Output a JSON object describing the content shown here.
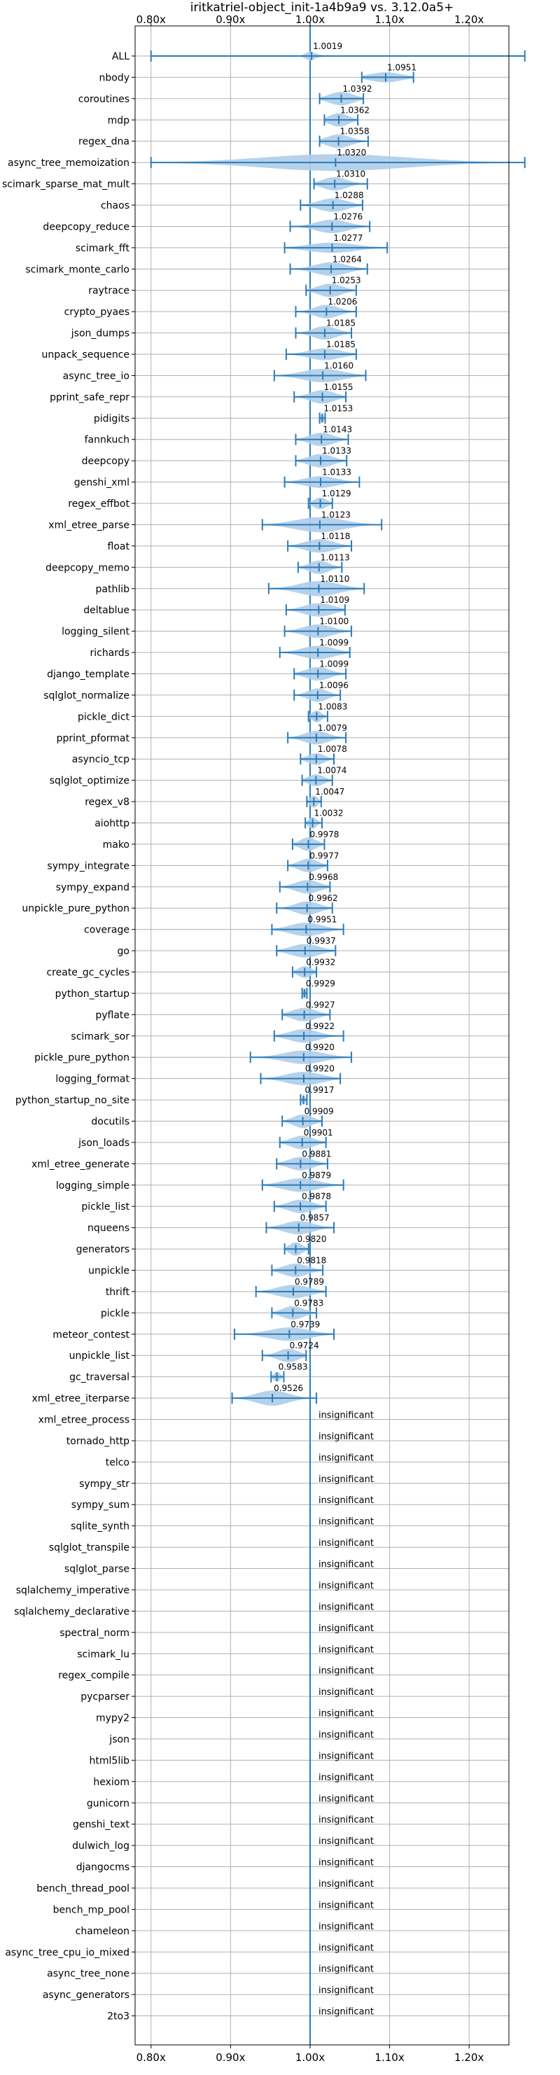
{
  "chart_data": {
    "type": "violin",
    "title": "iritkatriel-object_init-1a4b9a9 vs. 3.12.0a5+",
    "xlim": [
      0.78,
      1.25
    ],
    "xticks": [
      {
        "value": 0.8,
        "label": "0.80x"
      },
      {
        "value": 0.9,
        "label": "0.90x"
      },
      {
        "value": 1.0,
        "label": "1.00x"
      },
      {
        "value": 1.1,
        "label": "1.10x"
      },
      {
        "value": 1.2,
        "label": "1.20x"
      }
    ],
    "reference_value": 1.0,
    "grid": true,
    "insignificant_label": "insignificant",
    "benchmarks": [
      {
        "name": "ALL",
        "value": 1.0019,
        "label": "1.0019",
        "min": 0.8,
        "max": 1.27,
        "width": 0.6,
        "spread": 0.006
      },
      {
        "name": "nbody",
        "value": 1.0951,
        "label": "1.0951",
        "min": 1.065,
        "max": 1.13,
        "width": 0.6,
        "spread": 0.02
      },
      {
        "name": "coroutines",
        "value": 1.0392,
        "label": "1.0392",
        "min": 1.012,
        "max": 1.067,
        "width": 0.8,
        "spread": 0.015
      },
      {
        "name": "mdp",
        "value": 1.0362,
        "label": "1.0362",
        "min": 1.018,
        "max": 1.06,
        "width": 0.8,
        "spread": 0.012
      },
      {
        "name": "regex_dna",
        "value": 1.0358,
        "label": "1.0358",
        "min": 1.012,
        "max": 1.073,
        "width": 0.8,
        "spread": 0.015
      },
      {
        "name": "async_tree_memoization",
        "value": 1.032,
        "label": "1.0320",
        "min": 0.8,
        "max": 1.27,
        "width": 1.0,
        "spread": 0.09
      },
      {
        "name": "scimark_sparse_mat_mult",
        "value": 1.031,
        "label": "1.0310",
        "min": 1.005,
        "max": 1.072,
        "width": 0.8,
        "spread": 0.015
      },
      {
        "name": "chaos",
        "value": 1.0288,
        "label": "1.0288",
        "min": 0.988,
        "max": 1.066,
        "width": 0.8,
        "spread": 0.018
      },
      {
        "name": "deepcopy_reduce",
        "value": 1.0276,
        "label": "1.0276",
        "min": 0.975,
        "max": 1.075,
        "width": 0.8,
        "spread": 0.02
      },
      {
        "name": "scimark_fft",
        "value": 1.0277,
        "label": "1.0277",
        "min": 0.968,
        "max": 1.097,
        "width": 0.6,
        "spread": 0.03
      },
      {
        "name": "scimark_monte_carlo",
        "value": 1.0264,
        "label": "1.0264",
        "min": 0.975,
        "max": 1.072,
        "width": 0.8,
        "spread": 0.02
      },
      {
        "name": "raytrace",
        "value": 1.0253,
        "label": "1.0253",
        "min": 0.995,
        "max": 1.058,
        "width": 0.8,
        "spread": 0.015
      },
      {
        "name": "crypto_pyaes",
        "value": 1.0206,
        "label": "1.0206",
        "min": 0.982,
        "max": 1.058,
        "width": 0.8,
        "spread": 0.015
      },
      {
        "name": "json_dumps",
        "value": 1.0185,
        "label": "1.0185",
        "min": 0.982,
        "max": 1.052,
        "width": 0.8,
        "spread": 0.015
      },
      {
        "name": "unpack_sequence",
        "value": 1.0185,
        "label": "1.0185",
        "min": 0.97,
        "max": 1.058,
        "width": 0.7,
        "spread": 0.02
      },
      {
        "name": "async_tree_io",
        "value": 1.016,
        "label": "1.0160",
        "min": 0.955,
        "max": 1.07,
        "width": 0.8,
        "spread": 0.025
      },
      {
        "name": "pprint_safe_repr",
        "value": 1.0155,
        "label": "1.0155",
        "min": 0.98,
        "max": 1.045,
        "width": 0.8,
        "spread": 0.015
      },
      {
        "name": "pidigits",
        "value": 1.0153,
        "label": "1.0153",
        "min": 1.012,
        "max": 1.019,
        "width": 0.6,
        "spread": 0.002
      },
      {
        "name": "fannkuch",
        "value": 1.0143,
        "label": "1.0143",
        "min": 0.982,
        "max": 1.048,
        "width": 0.8,
        "spread": 0.015
      },
      {
        "name": "deepcopy",
        "value": 1.0133,
        "label": "1.0133",
        "min": 0.982,
        "max": 1.046,
        "width": 0.8,
        "spread": 0.015
      },
      {
        "name": "genshi_xml",
        "value": 1.0133,
        "label": "1.0133",
        "min": 0.968,
        "max": 1.062,
        "width": 0.7,
        "spread": 0.02
      },
      {
        "name": "regex_effbot",
        "value": 1.0129,
        "label": "1.0129",
        "min": 0.998,
        "max": 1.028,
        "width": 0.7,
        "spread": 0.008
      },
      {
        "name": "xml_etree_parse",
        "value": 1.0123,
        "label": "1.0123",
        "min": 0.94,
        "max": 1.09,
        "width": 0.9,
        "spread": 0.03
      },
      {
        "name": "float",
        "value": 1.0118,
        "label": "1.0118",
        "min": 0.972,
        "max": 1.052,
        "width": 0.8,
        "spread": 0.018
      },
      {
        "name": "deepcopy_memo",
        "value": 1.0113,
        "label": "1.0113",
        "min": 0.985,
        "max": 1.04,
        "width": 0.8,
        "spread": 0.012
      },
      {
        "name": "pathlib",
        "value": 1.011,
        "label": "1.0110",
        "min": 0.948,
        "max": 1.068,
        "width": 0.9,
        "spread": 0.025
      },
      {
        "name": "deltablue",
        "value": 1.0109,
        "label": "1.0109",
        "min": 0.97,
        "max": 1.044,
        "width": 0.8,
        "spread": 0.018
      },
      {
        "name": "logging_silent",
        "value": 1.01,
        "label": "1.0100",
        "min": 0.968,
        "max": 1.052,
        "width": 0.8,
        "spread": 0.018
      },
      {
        "name": "richards",
        "value": 1.0099,
        "label": "1.0099",
        "min": 0.962,
        "max": 1.05,
        "width": 0.8,
        "spread": 0.02
      },
      {
        "name": "django_template",
        "value": 1.0099,
        "label": "1.0099",
        "min": 0.98,
        "max": 1.045,
        "width": 0.8,
        "spread": 0.015
      },
      {
        "name": "sqlglot_normalize",
        "value": 1.0096,
        "label": "1.0096",
        "min": 0.98,
        "max": 1.038,
        "width": 0.8,
        "spread": 0.012
      },
      {
        "name": "pickle_dict",
        "value": 1.0083,
        "label": "1.0083",
        "min": 0.998,
        "max": 1.022,
        "width": 0.7,
        "spread": 0.006
      },
      {
        "name": "pprint_pformat",
        "value": 1.0079,
        "label": "1.0079",
        "min": 0.972,
        "max": 1.045,
        "width": 0.8,
        "spread": 0.015
      },
      {
        "name": "asyncio_tcp",
        "value": 1.0078,
        "label": "1.0078",
        "min": 0.988,
        "max": 1.03,
        "width": 0.7,
        "spread": 0.01
      },
      {
        "name": "sqlglot_optimize",
        "value": 1.0074,
        "label": "1.0074",
        "min": 0.99,
        "max": 1.028,
        "width": 0.7,
        "spread": 0.01
      },
      {
        "name": "regex_v8",
        "value": 1.0047,
        "label": "1.0047",
        "min": 0.996,
        "max": 1.014,
        "width": 0.7,
        "spread": 0.005
      },
      {
        "name": "aiohttp",
        "value": 1.0032,
        "label": "1.0032",
        "min": 0.994,
        "max": 1.015,
        "width": 0.7,
        "spread": 0.005
      },
      {
        "name": "mako",
        "value": 0.9978,
        "label": "0.9978",
        "min": 0.978,
        "max": 1.018,
        "width": 0.8,
        "spread": 0.01
      },
      {
        "name": "sympy_integrate",
        "value": 0.9977,
        "label": "0.9977",
        "min": 0.972,
        "max": 1.022,
        "width": 0.8,
        "spread": 0.012
      },
      {
        "name": "sympy_expand",
        "value": 0.9968,
        "label": "0.9968",
        "min": 0.962,
        "max": 1.025,
        "width": 0.8,
        "spread": 0.015
      },
      {
        "name": "unpickle_pure_python",
        "value": 0.9962,
        "label": "0.9962",
        "min": 0.958,
        "max": 1.028,
        "width": 0.8,
        "spread": 0.015
      },
      {
        "name": "coverage",
        "value": 0.9951,
        "label": "0.9951",
        "min": 0.952,
        "max": 1.042,
        "width": 0.8,
        "spread": 0.02
      },
      {
        "name": "go",
        "value": 0.9937,
        "label": "0.9937",
        "min": 0.958,
        "max": 1.032,
        "width": 0.8,
        "spread": 0.018
      },
      {
        "name": "create_gc_cycles",
        "value": 0.9932,
        "label": "0.9932",
        "min": 0.978,
        "max": 1.008,
        "width": 0.7,
        "spread": 0.008
      },
      {
        "name": "python_startup",
        "value": 0.9929,
        "label": "0.9929",
        "min": 0.99,
        "max": 0.996,
        "width": 0.6,
        "spread": 0.002
      },
      {
        "name": "pyflate",
        "value": 0.9927,
        "label": "0.9927",
        "min": 0.965,
        "max": 1.025,
        "width": 0.8,
        "spread": 0.015
      },
      {
        "name": "scimark_sor",
        "value": 0.9922,
        "label": "0.9922",
        "min": 0.955,
        "max": 1.042,
        "width": 0.8,
        "spread": 0.018
      },
      {
        "name": "pickle_pure_python",
        "value": 0.992,
        "label": "0.9920",
        "min": 0.925,
        "max": 1.052,
        "width": 0.8,
        "spread": 0.025
      },
      {
        "name": "logging_format",
        "value": 0.992,
        "label": "0.9920",
        "min": 0.938,
        "max": 1.038,
        "width": 0.8,
        "spread": 0.022
      },
      {
        "name": "python_startup_no_site",
        "value": 0.9917,
        "label": "0.9917",
        "min": 0.988,
        "max": 0.996,
        "width": 0.6,
        "spread": 0.002
      },
      {
        "name": "docutils",
        "value": 0.9909,
        "label": "0.9909",
        "min": 0.965,
        "max": 1.015,
        "width": 0.8,
        "spread": 0.012
      },
      {
        "name": "json_loads",
        "value": 0.9901,
        "label": "0.9901",
        "min": 0.962,
        "max": 1.02,
        "width": 0.8,
        "spread": 0.014
      },
      {
        "name": "xml_etree_generate",
        "value": 0.9881,
        "label": "0.9881",
        "min": 0.958,
        "max": 1.022,
        "width": 0.8,
        "spread": 0.015
      },
      {
        "name": "logging_simple",
        "value": 0.9879,
        "label": "0.9879",
        "min": 0.94,
        "max": 1.042,
        "width": 0.8,
        "spread": 0.022
      },
      {
        "name": "pickle_list",
        "value": 0.9878,
        "label": "0.9878",
        "min": 0.955,
        "max": 1.02,
        "width": 0.8,
        "spread": 0.015
      },
      {
        "name": "nqueens",
        "value": 0.9857,
        "label": "0.9857",
        "min": 0.945,
        "max": 1.03,
        "width": 0.8,
        "spread": 0.018
      },
      {
        "name": "generators",
        "value": 0.982,
        "label": "0.9820",
        "min": 0.968,
        "max": 0.998,
        "width": 0.8,
        "spread": 0.008
      },
      {
        "name": "unpickle",
        "value": 0.9818,
        "label": "0.9818",
        "min": 0.952,
        "max": 1.016,
        "width": 0.8,
        "spread": 0.015
      },
      {
        "name": "thrift",
        "value": 0.9789,
        "label": "0.9789",
        "min": 0.932,
        "max": 1.02,
        "width": 0.8,
        "spread": 0.02
      },
      {
        "name": "pickle",
        "value": 0.9783,
        "label": "0.9783",
        "min": 0.952,
        "max": 1.008,
        "width": 0.8,
        "spread": 0.013
      },
      {
        "name": "meteor_contest",
        "value": 0.9739,
        "label": "0.9739",
        "min": 0.905,
        "max": 1.03,
        "width": 0.8,
        "spread": 0.025
      },
      {
        "name": "unpickle_list",
        "value": 0.9724,
        "label": "0.9724",
        "min": 0.94,
        "max": 0.995,
        "width": 0.8,
        "spread": 0.013
      },
      {
        "name": "gc_traversal",
        "value": 0.9583,
        "label": "0.9583",
        "min": 0.951,
        "max": 0.967,
        "width": 0.6,
        "spread": 0.004
      },
      {
        "name": "xml_etree_iterparse",
        "value": 0.9526,
        "label": "0.9526",
        "min": 0.902,
        "max": 1.008,
        "width": 0.9,
        "spread": 0.02
      },
      {
        "name": "xml_etree_process",
        "insignificant": true
      },
      {
        "name": "tornado_http",
        "insignificant": true
      },
      {
        "name": "telco",
        "insignificant": true
      },
      {
        "name": "sympy_str",
        "insignificant": true
      },
      {
        "name": "sympy_sum",
        "insignificant": true
      },
      {
        "name": "sqlite_synth",
        "insignificant": true
      },
      {
        "name": "sqlglot_transpile",
        "insignificant": true
      },
      {
        "name": "sqlglot_parse",
        "insignificant": true
      },
      {
        "name": "sqlalchemy_imperative",
        "insignificant": true
      },
      {
        "name": "sqlalchemy_declarative",
        "insignificant": true
      },
      {
        "name": "spectral_norm",
        "insignificant": true
      },
      {
        "name": "scimark_lu",
        "insignificant": true
      },
      {
        "name": "regex_compile",
        "insignificant": true
      },
      {
        "name": "pycparser",
        "insignificant": true
      },
      {
        "name": "mypy2",
        "insignificant": true
      },
      {
        "name": "json",
        "insignificant": true
      },
      {
        "name": "html5lib",
        "insignificant": true
      },
      {
        "name": "hexiom",
        "insignificant": true
      },
      {
        "name": "gunicorn",
        "insignificant": true
      },
      {
        "name": "genshi_text",
        "insignificant": true
      },
      {
        "name": "dulwich_log",
        "insignificant": true
      },
      {
        "name": "djangocms",
        "insignificant": true
      },
      {
        "name": "bench_thread_pool",
        "insignificant": true
      },
      {
        "name": "bench_mp_pool",
        "insignificant": true
      },
      {
        "name": "chameleon",
        "insignificant": true
      },
      {
        "name": "async_tree_cpu_io_mixed",
        "insignificant": true
      },
      {
        "name": "async_tree_none",
        "insignificant": true
      },
      {
        "name": "async_generators",
        "insignificant": true
      },
      {
        "name": "2to3",
        "insignificant": true
      }
    ],
    "colors": {
      "violin": "#aecde8",
      "line": "#2b7bba",
      "grid": "#b0b0b0",
      "axis": "#000000"
    }
  }
}
